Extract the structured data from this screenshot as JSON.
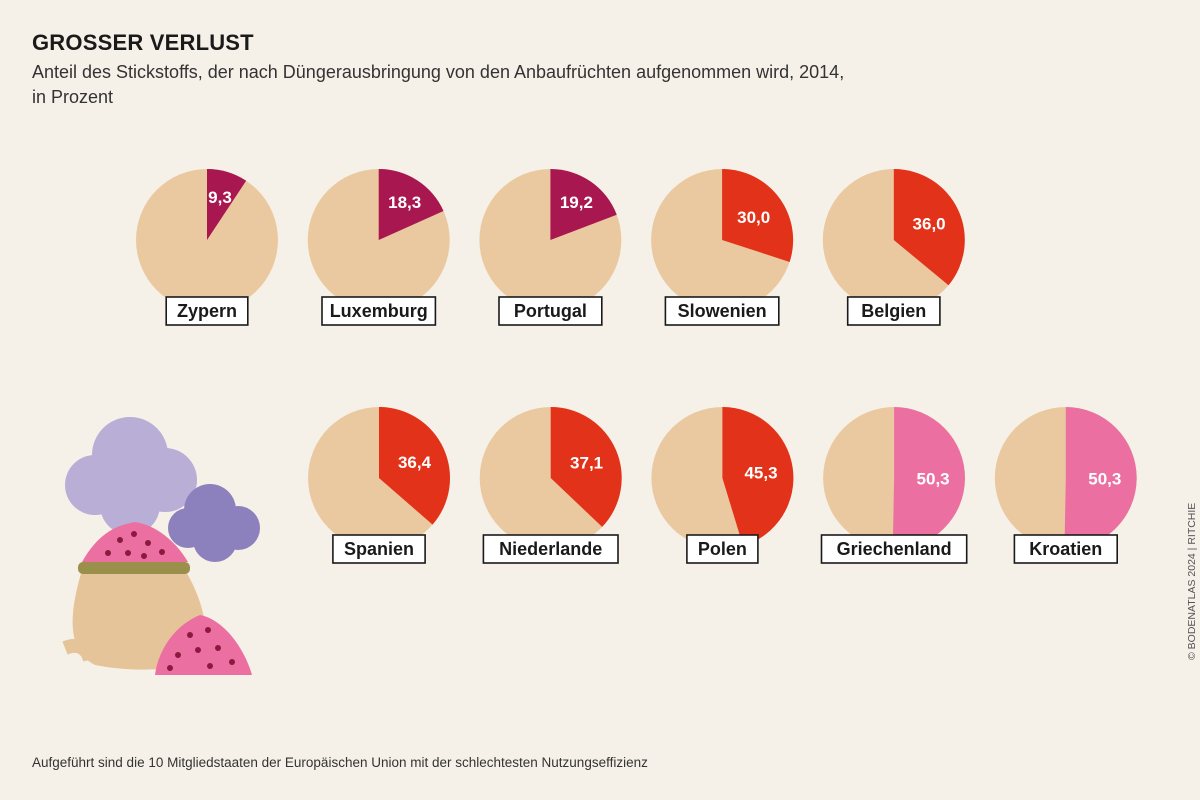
{
  "title": "GROSSER VERLUST",
  "subtitle": "Anteil des Stickstoffs, der nach Düngerausbringung von den Anbaufrüchten aufgenommen wird, 2014,",
  "subtitle_line2": "in Prozent",
  "footnote": "Aufgeführt sind die 10 Mitgliedstaaten der Europäischen Union mit der schlechtesten Nutzungseffizienz",
  "credit": "© BODENATLAS 2024 | RITCHIE",
  "colors": {
    "background": "#f6f1e8",
    "pie_base": "#ebc9a0",
    "low": "#a8174f",
    "mid": "#e3321a",
    "high": "#ec6fa2"
  },
  "chart_data": {
    "type": "pie",
    "title": "GROSSER VERLUST",
    "unit": "Prozent",
    "year": 2014,
    "categories": [
      "Zypern",
      "Luxemburg",
      "Portugal",
      "Slowenien",
      "Belgien",
      "Spanien",
      "Niederlande",
      "Polen",
      "Griechenland",
      "Kroatien"
    ],
    "values": [
      9.3,
      18.3,
      19.2,
      30.0,
      36.0,
      36.4,
      37.1,
      45.3,
      50.3,
      50.3
    ],
    "labels": [
      "9,3",
      "18,3",
      "19,2",
      "30,0",
      "36,0",
      "36,4",
      "37,1",
      "45,3",
      "50,3",
      "50,3"
    ],
    "color_keys": [
      "low",
      "low",
      "low",
      "mid",
      "mid",
      "mid",
      "mid",
      "mid",
      "high",
      "high"
    ]
  }
}
